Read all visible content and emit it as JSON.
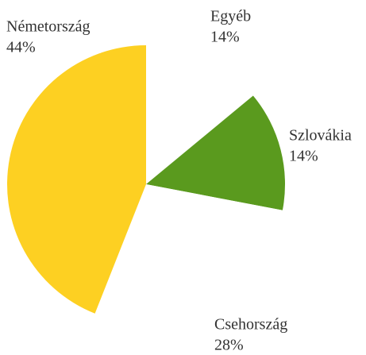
{
  "chart_data": {
    "type": "pie",
    "categories": [
      "Egyéb",
      "Szlovákia",
      "Csehország",
      "Németország"
    ],
    "values": [
      14,
      14,
      28,
      44
    ],
    "value_labels": [
      "14%",
      "14%",
      "28%",
      "44%"
    ],
    "colors": [
      "#ffffff",
      "#5a9a1e",
      "#ffffff",
      "#fdd022"
    ]
  }
}
